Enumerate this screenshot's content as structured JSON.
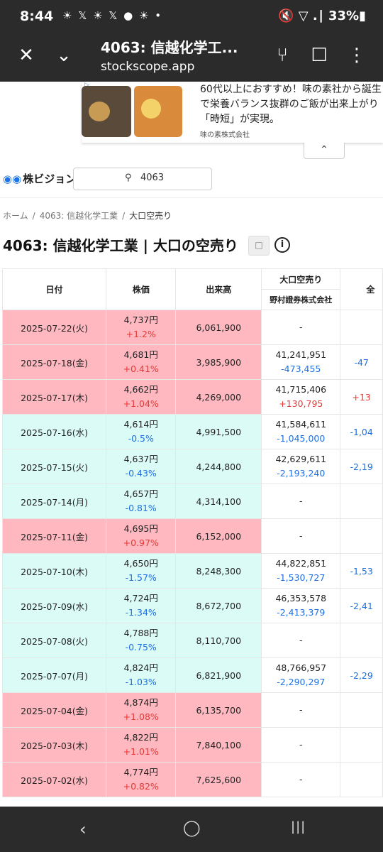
{
  "status": {
    "time": "8:44",
    "notif_icons": "☀ 𝕏 ☀ 𝕏 ● ☀ •",
    "right": "🔇 ▽ .∣ 33%▮"
  },
  "appbar": {
    "title": "4063: 信越化学工...",
    "url": "stockscope.app",
    "close": "✕",
    "chevron": "⌄",
    "share": "⑂",
    "bookmark": "☐",
    "more": "⋮"
  },
  "ad": {
    "line1": "60代以上におすすめ！味の素社から誕生",
    "line2": "で栄養バランス抜群のご飯が出来上がり",
    "line3": "「時短」が実現。",
    "source": "味の素株式会社",
    "collapse": "⌃"
  },
  "site": {
    "logo": "株ビジョン",
    "search_value": "4063"
  },
  "breadcrumb": {
    "home": "ホーム",
    "stock": "4063: 信越化学工業",
    "current": "大口空売り"
  },
  "page_title": "4063: 信越化学工業 | 大口の空売り",
  "table": {
    "headers": {
      "date": "日付",
      "price": "株価",
      "volume": "出来高",
      "short_group": "大口空売り",
      "broker": "野村證券株式会社",
      "next": "全"
    },
    "rows": [
      {
        "date": "2025-07-22(火)",
        "price": "4,737円",
        "pct": "+1.2%",
        "volume": "6,061,900",
        "short": "-",
        "short_chg": "",
        "next": "",
        "dir": "up"
      },
      {
        "date": "2025-07-18(金)",
        "price": "4,681円",
        "pct": "+0.41%",
        "volume": "3,985,900",
        "short": "41,241,951",
        "short_chg": "-473,455",
        "next": "-47",
        "dir": "up"
      },
      {
        "date": "2025-07-17(木)",
        "price": "4,662円",
        "pct": "+1.04%",
        "volume": "4,269,000",
        "short": "41,715,406",
        "short_chg": "+130,795",
        "next": "+13",
        "dir": "up"
      },
      {
        "date": "2025-07-16(水)",
        "price": "4,614円",
        "pct": "-0.5%",
        "volume": "4,991,500",
        "short": "41,584,611",
        "short_chg": "-1,045,000",
        "next": "-1,04",
        "dir": "down"
      },
      {
        "date": "2025-07-15(火)",
        "price": "4,637円",
        "pct": "-0.43%",
        "volume": "4,244,800",
        "short": "42,629,611",
        "short_chg": "-2,193,240",
        "next": "-2,19",
        "dir": "down"
      },
      {
        "date": "2025-07-14(月)",
        "price": "4,657円",
        "pct": "-0.81%",
        "volume": "4,314,100",
        "short": "-",
        "short_chg": "",
        "next": "",
        "dir": "down"
      },
      {
        "date": "2025-07-11(金)",
        "price": "4,695円",
        "pct": "+0.97%",
        "volume": "6,152,000",
        "short": "-",
        "short_chg": "",
        "next": "",
        "dir": "up"
      },
      {
        "date": "2025-07-10(木)",
        "price": "4,650円",
        "pct": "-1.57%",
        "volume": "8,248,300",
        "short": "44,822,851",
        "short_chg": "-1,530,727",
        "next": "-1,53",
        "dir": "down"
      },
      {
        "date": "2025-07-09(水)",
        "price": "4,724円",
        "pct": "-1.34%",
        "volume": "8,672,700",
        "short": "46,353,578",
        "short_chg": "-2,413,379",
        "next": "-2,41",
        "dir": "down"
      },
      {
        "date": "2025-07-08(火)",
        "price": "4,788円",
        "pct": "-0.75%",
        "volume": "8,110,700",
        "short": "-",
        "short_chg": "",
        "next": "",
        "dir": "down"
      },
      {
        "date": "2025-07-07(月)",
        "price": "4,824円",
        "pct": "-1.03%",
        "volume": "6,821,900",
        "short": "48,766,957",
        "short_chg": "-2,290,297",
        "next": "-2,29",
        "dir": "down"
      },
      {
        "date": "2025-07-04(金)",
        "price": "4,874円",
        "pct": "+1.08%",
        "volume": "6,135,700",
        "short": "-",
        "short_chg": "",
        "next": "",
        "dir": "up"
      },
      {
        "date": "2025-07-03(木)",
        "price": "4,822円",
        "pct": "+1.01%",
        "volume": "7,840,100",
        "short": "-",
        "short_chg": "",
        "next": "",
        "dir": "up"
      },
      {
        "date": "2025-07-02(水)",
        "price": "4,774円",
        "pct": "+0.82%",
        "volume": "7,625,600",
        "short": "-",
        "short_chg": "",
        "next": "",
        "dir": "up"
      }
    ]
  },
  "nav": {
    "back": "‹",
    "home": "◯",
    "recents": "|||"
  }
}
